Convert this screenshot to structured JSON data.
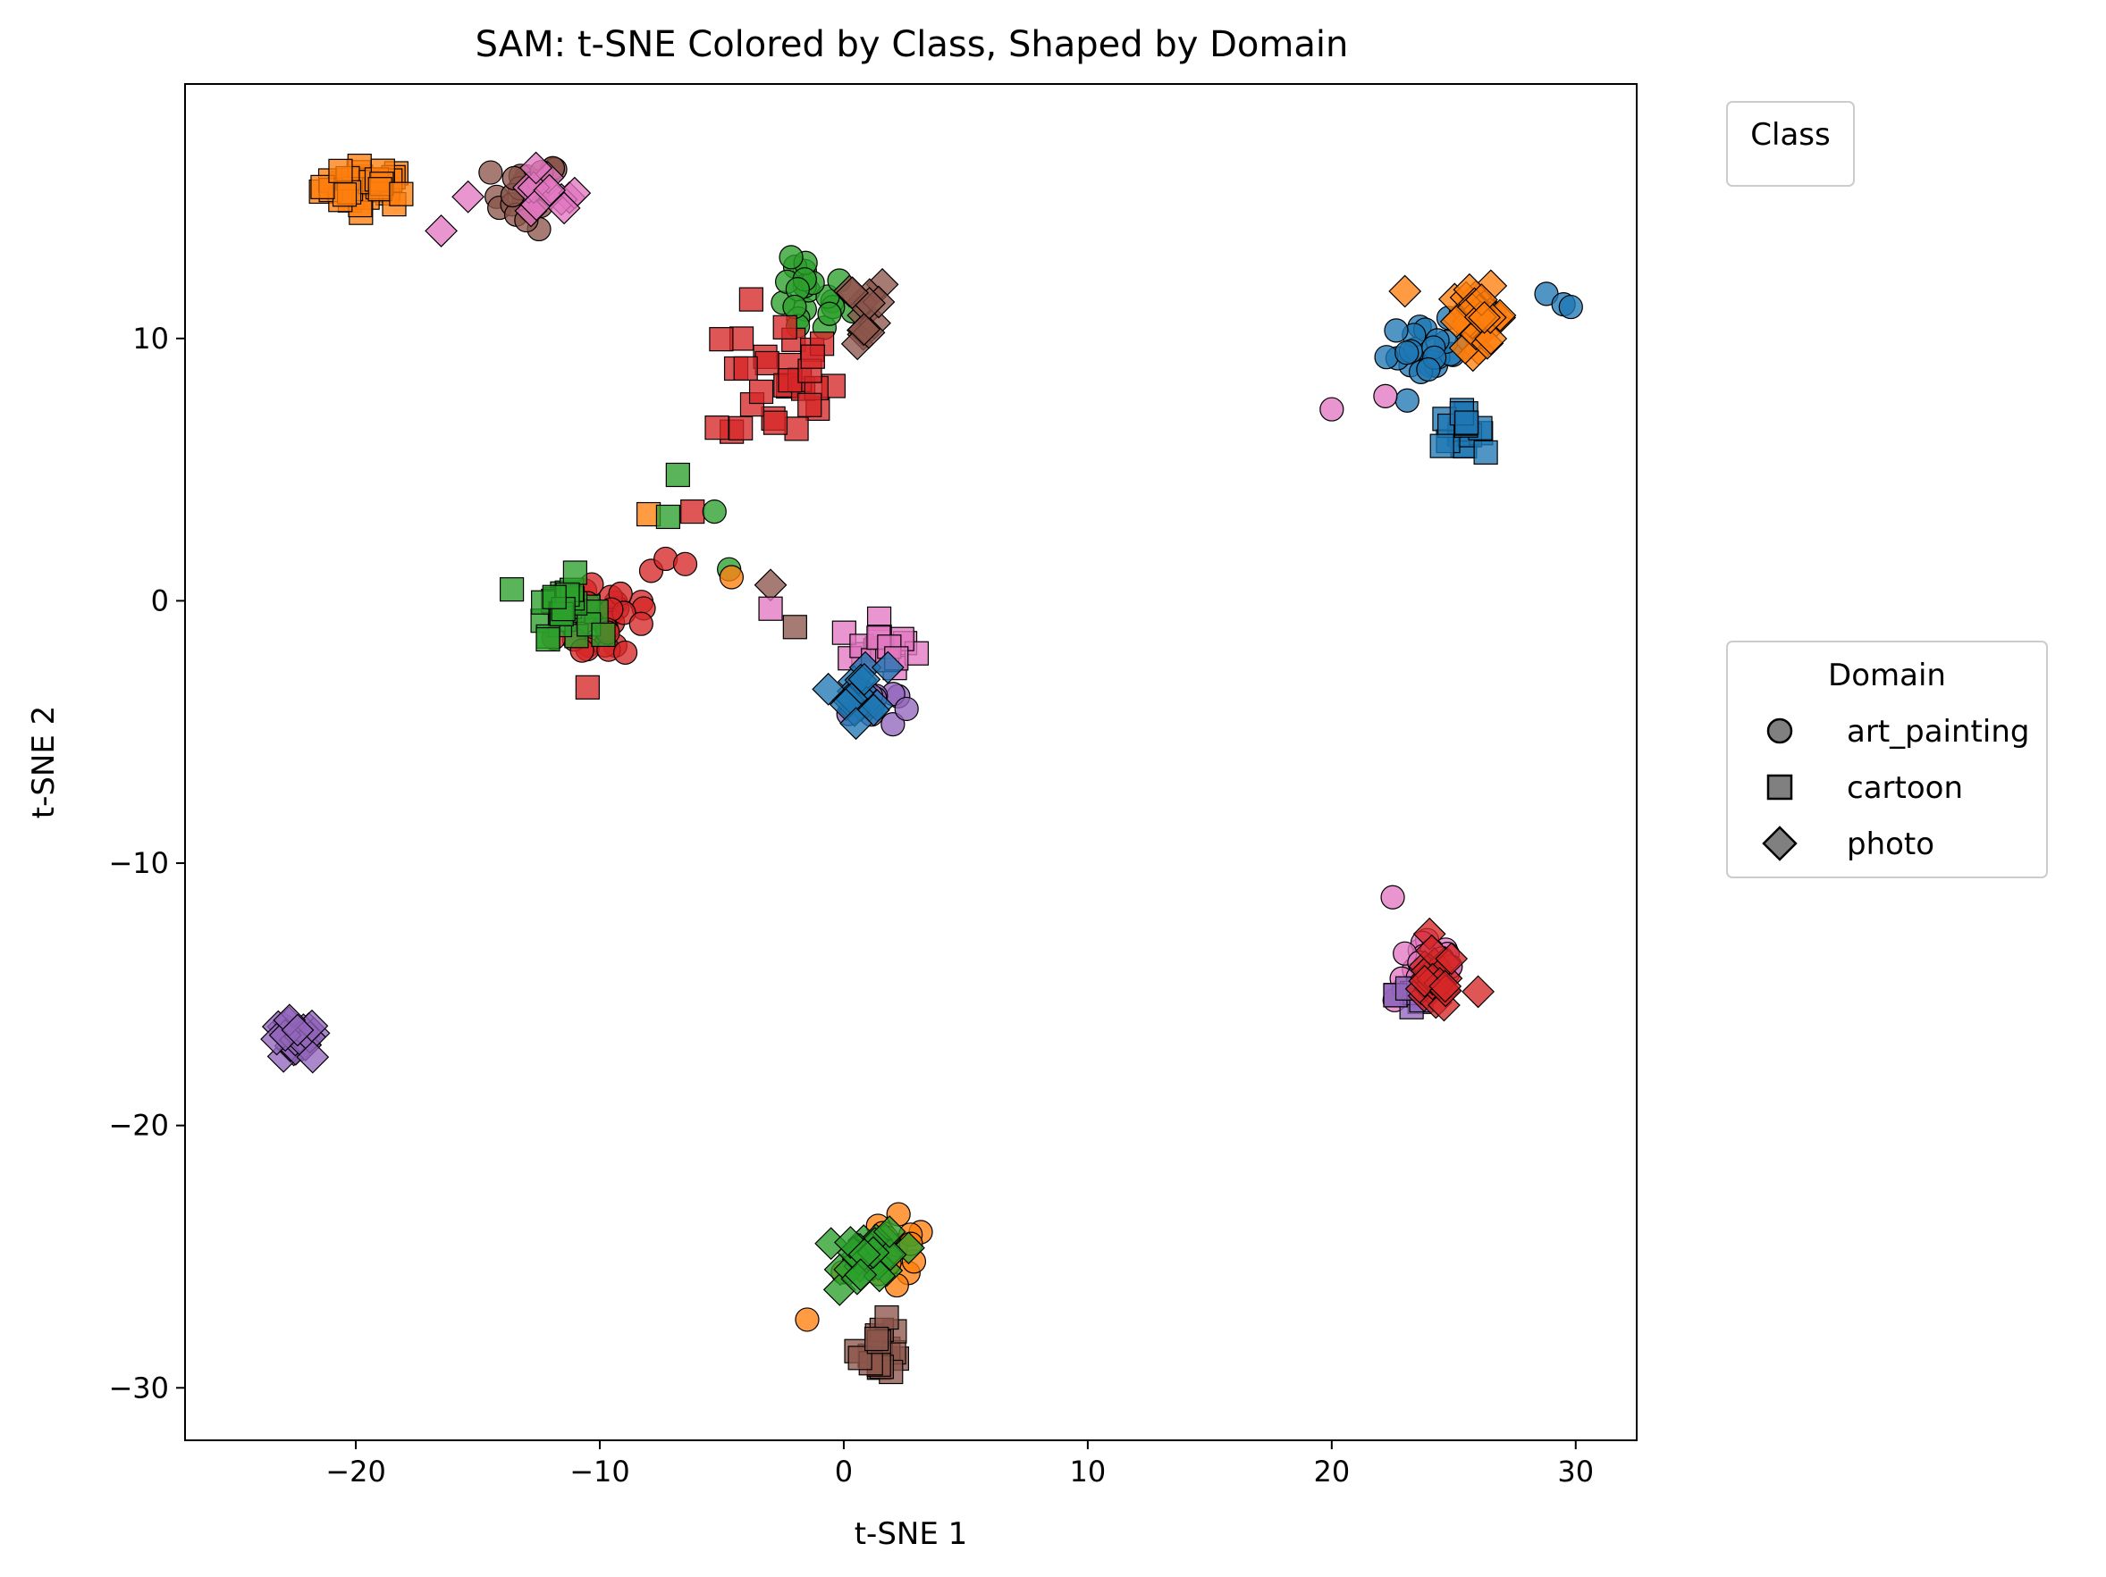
{
  "chart_data": {
    "type": "scatter",
    "title": "SAM: t-SNE Colored by Class, Shaped by Domain",
    "xlabel": "t-SNE 1",
    "ylabel": "t-SNE 2",
    "xlim": [
      -27,
      32.5
    ],
    "ylim": [
      -32,
      19.7
    ],
    "xticks": [
      -20,
      -10,
      0,
      10,
      20,
      30
    ],
    "yticks": [
      10,
      0,
      -10,
      -20,
      -30
    ],
    "xtick_labels": [
      "−20",
      "−10",
      "0",
      "10",
      "20",
      "30"
    ],
    "ytick_labels": [
      "10",
      "0",
      "−10",
      "−20",
      "−30"
    ],
    "grid": false,
    "legends": [
      {
        "title": "Class",
        "placement": "upper right, outside plot",
        "entries": []
      },
      {
        "title": "Domain",
        "placement": "center right, outside plot",
        "entries": [
          {
            "label": "art_painting",
            "marker": "circle"
          },
          {
            "label": "cartoon",
            "marker": "square"
          },
          {
            "label": "photo",
            "marker": "diamond"
          }
        ]
      }
    ],
    "class_colors": {
      "c0": "#1f77b4",
      "c1": "#ff7f0e",
      "c2": "#2ca02c",
      "c3": "#d62728",
      "c4": "#9467bd",
      "c5": "#8c564b",
      "c6": "#e377c2"
    },
    "clusters": [
      {
        "class": "c1",
        "domain": "cartoon",
        "cx": -19.5,
        "cy": 15.8,
        "sx": 1.7,
        "sy": 0.7,
        "n": 40
      },
      {
        "class": "c5",
        "domain": "art_painting",
        "cx": -13,
        "cy": 15.5,
        "sx": 1.3,
        "sy": 1.2,
        "n": 22
      },
      {
        "class": "c6",
        "domain": "photo",
        "cx": -12.2,
        "cy": 15.4,
        "sx": 1.2,
        "sy": 0.8,
        "n": 12
      },
      {
        "class": "c2",
        "domain": "art_painting",
        "cx": -1.5,
        "cy": 11.5,
        "sx": 1.6,
        "sy": 1.5,
        "n": 22
      },
      {
        "class": "c3",
        "domain": "cartoon",
        "cx": -2.5,
        "cy": 8.5,
        "sx": 2.0,
        "sy": 2.5,
        "n": 30
      },
      {
        "class": "c5",
        "domain": "photo",
        "cx": 0.5,
        "cy": 11,
        "sx": 1.3,
        "sy": 1.3,
        "n": 14
      },
      {
        "class": "c3",
        "domain": "art_painting",
        "cx": -9.5,
        "cy": -0.5,
        "sx": 2.0,
        "sy": 2.0,
        "n": 30
      },
      {
        "class": "c2",
        "domain": "cartoon",
        "cx": -11.5,
        "cy": -0.2,
        "sx": 1.1,
        "sy": 1.0,
        "n": 30
      },
      {
        "class": "c6",
        "domain": "cartoon",
        "cx": 1.5,
        "cy": -1.8,
        "sx": 1.5,
        "sy": 0.9,
        "n": 18
      },
      {
        "class": "c4",
        "domain": "art_painting",
        "cx": 1.2,
        "cy": -4,
        "sx": 0.9,
        "sy": 0.8,
        "n": 10
      },
      {
        "class": "c0",
        "domain": "photo",
        "cx": 0.8,
        "cy": -3.5,
        "sx": 0.9,
        "sy": 1.0,
        "n": 18
      },
      {
        "class": "c0",
        "domain": "art_painting",
        "cx": 24,
        "cy": 9.5,
        "sx": 1.6,
        "sy": 1.0,
        "n": 25
      },
      {
        "class": "c1",
        "domain": "photo",
        "cx": 26,
        "cy": 10.8,
        "sx": 1.0,
        "sy": 1.0,
        "n": 35
      },
      {
        "class": "c0",
        "domain": "cartoon",
        "cx": 25.2,
        "cy": 6.5,
        "sx": 0.9,
        "sy": 0.6,
        "n": 18
      },
      {
        "class": "c6",
        "domain": "art_painting",
        "cx": 24,
        "cy": -14,
        "sx": 1.3,
        "sy": 1.2,
        "n": 28
      },
      {
        "class": "c4",
        "domain": "cartoon",
        "cx": 23.3,
        "cy": -15,
        "sx": 0.6,
        "sy": 0.8,
        "n": 10
      },
      {
        "class": "c3",
        "domain": "photo",
        "cx": 24.2,
        "cy": -14.5,
        "sx": 0.8,
        "sy": 1.0,
        "n": 25
      },
      {
        "class": "c4",
        "domain": "photo",
        "cx": -22.5,
        "cy": -16.8,
        "sx": 0.9,
        "sy": 0.7,
        "n": 30
      },
      {
        "class": "c1",
        "domain": "art_painting",
        "cx": 2.0,
        "cy": -25,
        "sx": 1.4,
        "sy": 1.2,
        "n": 20
      },
      {
        "class": "c2",
        "domain": "photo",
        "cx": 1.2,
        "cy": -25,
        "sx": 1.1,
        "sy": 0.9,
        "n": 35
      },
      {
        "class": "c5",
        "domain": "cartoon",
        "cx": 1.5,
        "cy": -28.5,
        "sx": 0.8,
        "sy": 0.9,
        "n": 20
      }
    ],
    "points": [
      {
        "class": "c1",
        "domain": "cartoon",
        "x": -8,
        "y": 3.3
      },
      {
        "class": "c2",
        "domain": "cartoon",
        "x": -6.8,
        "y": 4.8
      },
      {
        "class": "c2",
        "domain": "cartoon",
        "x": -7.2,
        "y": 3.2
      },
      {
        "class": "c3",
        "domain": "cartoon",
        "x": -6.2,
        "y": 3.4
      },
      {
        "class": "c3",
        "domain": "cartoon",
        "x": -5.2,
        "y": 6.6
      },
      {
        "class": "c2",
        "domain": "art_painting",
        "x": -5.3,
        "y": 3.4
      },
      {
        "class": "c2",
        "domain": "art_painting",
        "x": -4.7,
        "y": 1.2
      },
      {
        "class": "c1",
        "domain": "art_painting",
        "x": -4.6,
        "y": 0.9
      },
      {
        "class": "c5",
        "domain": "photo",
        "x": -3.0,
        "y": 0.6
      },
      {
        "class": "c6",
        "domain": "cartoon",
        "x": -3.0,
        "y": -0.3
      },
      {
        "class": "c5",
        "domain": "cartoon",
        "x": -2.0,
        "y": -1.0
      },
      {
        "class": "c3",
        "domain": "art_painting",
        "x": -7.3,
        "y": 1.6
      },
      {
        "class": "c3",
        "domain": "art_painting",
        "x": -6.5,
        "y": 1.4
      },
      {
        "class": "c6",
        "domain": "photo",
        "x": -16.5,
        "y": 14.1
      },
      {
        "class": "c6",
        "domain": "photo",
        "x": -15.4,
        "y": 15.4
      },
      {
        "class": "c6",
        "domain": "art_painting",
        "x": 20.0,
        "y": 7.3
      },
      {
        "class": "c6",
        "domain": "art_painting",
        "x": 22.2,
        "y": 7.8
      },
      {
        "class": "c1",
        "domain": "photo",
        "x": 23.0,
        "y": 11.8
      },
      {
        "class": "c0",
        "domain": "art_painting",
        "x": 28.8,
        "y": 11.7
      },
      {
        "class": "c0",
        "domain": "art_painting",
        "x": 29.5,
        "y": 11.3
      },
      {
        "class": "c0",
        "domain": "art_painting",
        "x": 29.8,
        "y": 11.2
      },
      {
        "class": "c3",
        "domain": "photo",
        "x": 26.0,
        "y": -14.9
      },
      {
        "class": "c6",
        "domain": "art_painting",
        "x": 22.5,
        "y": -11.3
      },
      {
        "class": "c3",
        "domain": "cartoon",
        "x": -10.5,
        "y": -3.3
      },
      {
        "class": "c1",
        "domain": "art_painting",
        "x": -1.5,
        "y": -27.4
      }
    ]
  }
}
